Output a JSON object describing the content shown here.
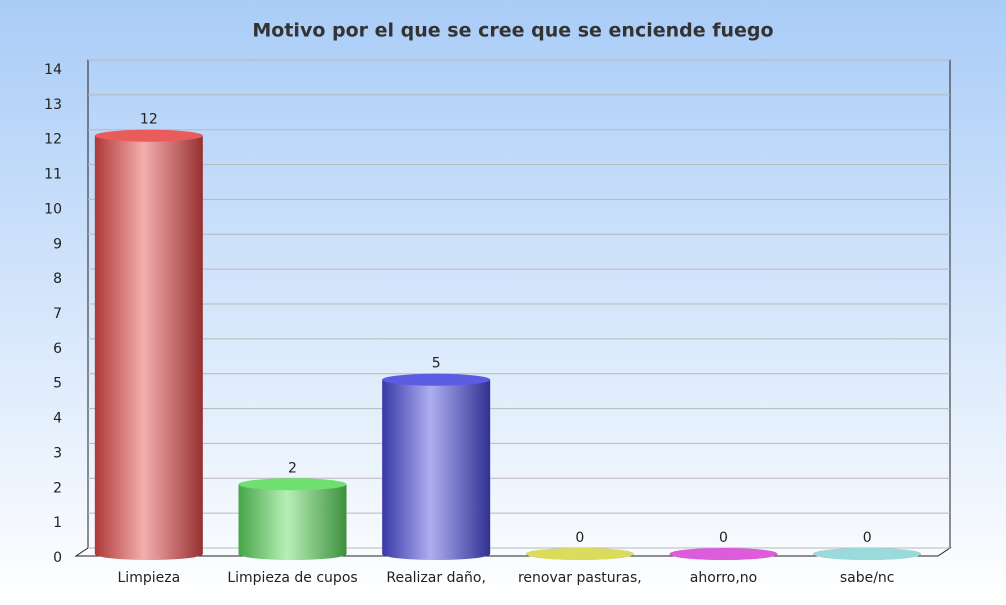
{
  "chart_data": {
    "type": "bar",
    "title": "Motivo por el que se cree que se enciende fuego",
    "categories": [
      "Limpieza",
      "Limpieza de cupos",
      "Realizar daño,",
      "renovar pasturas,",
      "ahorro,no",
      "sabe/nc"
    ],
    "values": [
      12,
      2,
      5,
      0,
      0,
      0
    ],
    "colors": [
      "#e84a4a",
      "#5fdc5f",
      "#4a4ae0",
      "#d8d84a",
      "#d84ad8",
      "#8fd6d6"
    ],
    "ylim": [
      0,
      14
    ],
    "yticks": [
      0,
      1,
      2,
      3,
      4,
      5,
      6,
      7,
      8,
      9,
      10,
      11,
      12,
      13,
      14
    ],
    "grid": true
  }
}
